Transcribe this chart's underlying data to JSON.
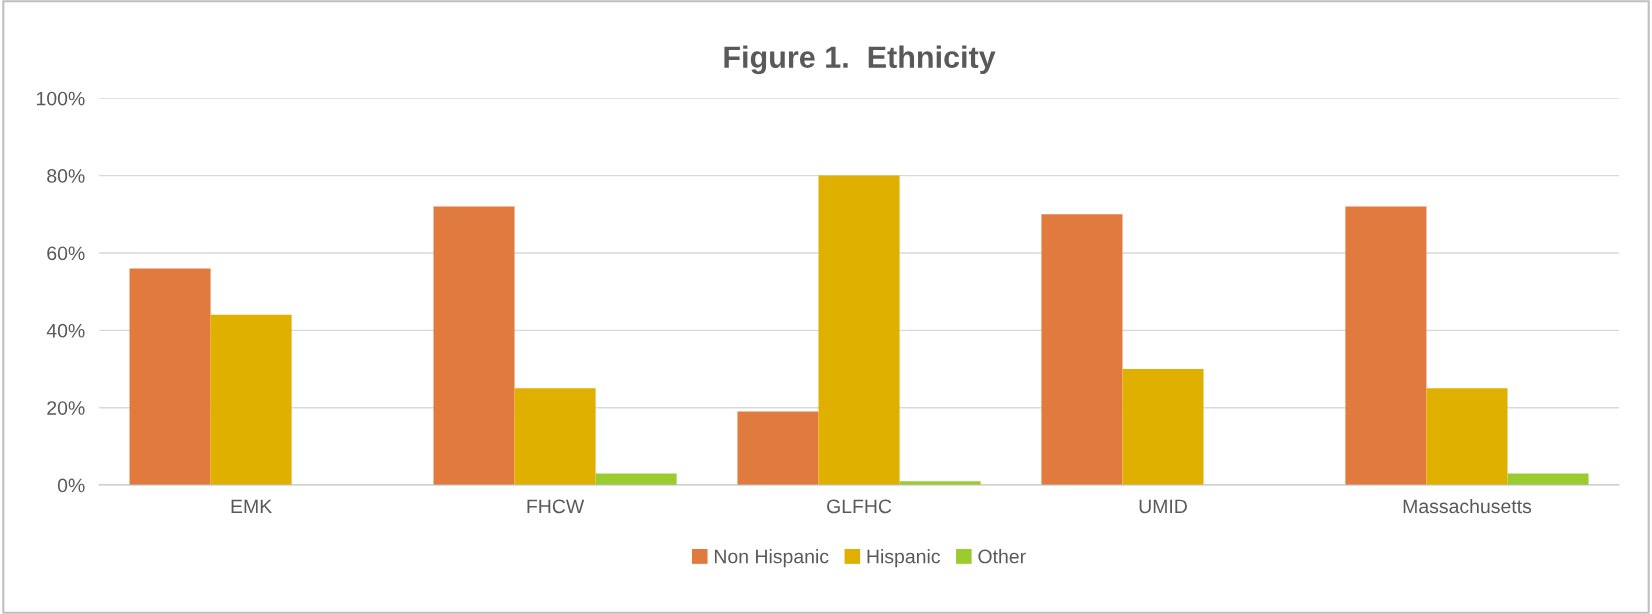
{
  "chart_data": {
    "type": "bar",
    "title": "Figure 1.  Ethnicity",
    "categories": [
      "EMK",
      "FHCW",
      "GLFHC",
      "UMID",
      "Massachusetts"
    ],
    "series": [
      {
        "name": "Non Hispanic",
        "color": "#e07a3e",
        "values": [
          56,
          72,
          19,
          70,
          72
        ]
      },
      {
        "name": "Hispanic",
        "color": "#dfb000",
        "values": [
          44,
          25,
          80,
          30,
          25
        ]
      },
      {
        "name": "Other",
        "color": "#9acb2f",
        "values": [
          0,
          3,
          1,
          0,
          3
        ]
      }
    ],
    "ylim": [
      0,
      100
    ],
    "yticks": [
      {
        "value": 0,
        "label": "0%"
      },
      {
        "value": 20,
        "label": "20%"
      },
      {
        "value": 40,
        "label": "40%"
      },
      {
        "value": 60,
        "label": "60%"
      },
      {
        "value": 80,
        "label": "80%"
      },
      {
        "value": 100,
        "label": "100%"
      }
    ],
    "grid": "y",
    "legend": "bottom"
  }
}
